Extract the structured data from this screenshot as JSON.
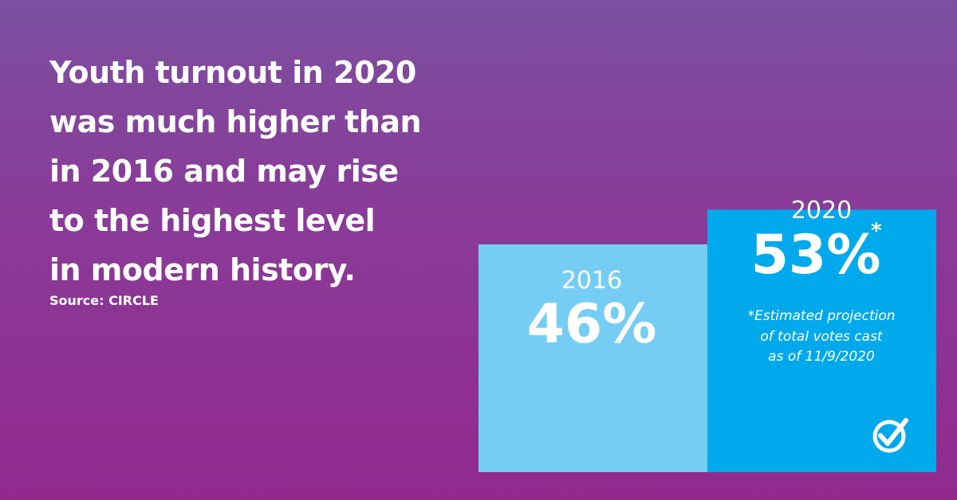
{
  "headline": {
    "lines": [
      "Youth turnout in 2020",
      "was much higher than",
      "in 2016 and may rise",
      "to the highest level",
      "in modern history."
    ]
  },
  "source": "Source: CIRCLE",
  "chart_data": {
    "type": "bar",
    "categories": [
      "2016",
      "2020"
    ],
    "values": [
      46,
      53
    ],
    "value_labels": [
      "46%",
      "53%"
    ],
    "markers": [
      "",
      "*"
    ],
    "colors": [
      "#76cdf4",
      "#00a9ec"
    ],
    "footnote": [
      "*Estimated projection",
      "of total votes cast",
      "as of 11/9/2020"
    ],
    "title": "",
    "xlabel": "",
    "ylabel": "",
    "grid": false
  },
  "logo": {
    "icon": "check-circle-icon"
  }
}
